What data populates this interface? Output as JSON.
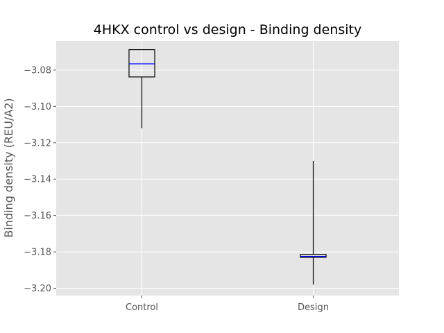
{
  "chart_data": {
    "type": "box",
    "title": "4HKX control vs design - Binding density",
    "xlabel": "",
    "ylabel": "Binding density (REU/A2)",
    "ylim": [
      -3.204,
      -3.064
    ],
    "yticks": [
      -3.08,
      -3.1,
      -3.12,
      -3.14,
      -3.16,
      -3.18,
      -3.2
    ],
    "ytick_labels": [
      "−3.08",
      "−3.10",
      "−3.12",
      "−3.14",
      "−3.16",
      "−3.18",
      "−3.20"
    ],
    "categories": [
      "Control",
      "Design"
    ],
    "boxes": [
      {
        "category": "Control",
        "whisker_low": -3.112,
        "q1": -3.0838,
        "median": -3.0766,
        "q3": -3.0688,
        "whisker_high": -3.0688
      },
      {
        "category": "Design",
        "whisker_low": -3.198,
        "q1": -3.183,
        "median": -3.1825,
        "q3": -3.1814,
        "whisker_high": -3.13
      }
    ],
    "grid": true,
    "colors": {
      "plot_background": "#e5e5e5",
      "grid": "#ffffff",
      "box": "#000000",
      "median": "#0000ff",
      "whisker": "#000000"
    }
  }
}
